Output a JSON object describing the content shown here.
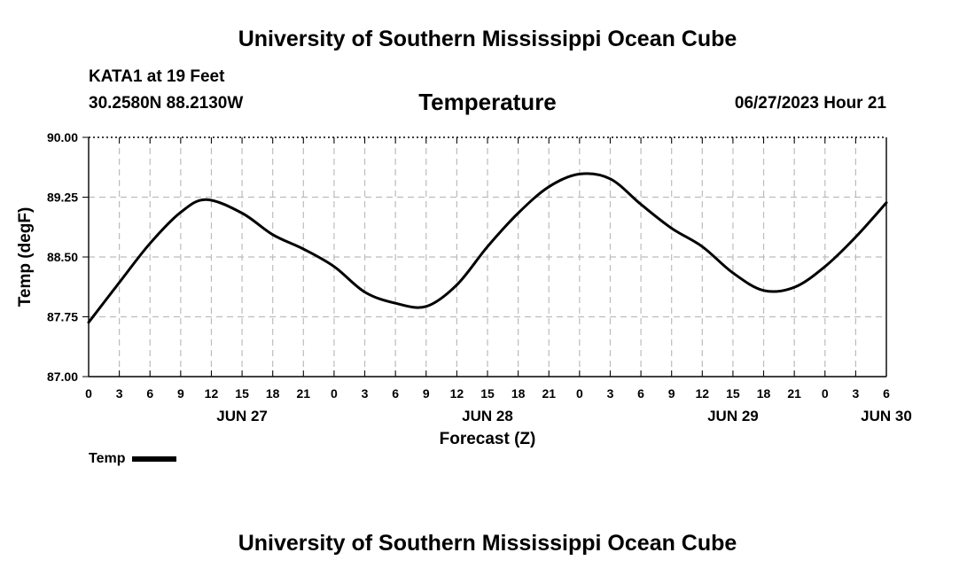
{
  "page": {
    "title_top": "University of Southern Mississippi Ocean Cube",
    "title_bottom": "University of Southern Mississippi Ocean Cube",
    "station": "KATA1 at 19 Feet",
    "coordinates": "30.2580N  88.2130W",
    "datetime": "06/27/2023 Hour 21"
  },
  "chart_data": {
    "type": "line",
    "title": "Temperature",
    "xlabel": "Forecast (Z)",
    "ylabel": "Temp (degF)",
    "ylim": [
      87.0,
      90.0
    ],
    "yticks": [
      "87.00",
      "87.75",
      "88.50",
      "89.25",
      "90.00"
    ],
    "xlim": [
      0,
      78
    ],
    "x_tick_step_hours": 3,
    "x_tick_labels": [
      "0",
      "3",
      "6",
      "9",
      "12",
      "15",
      "18",
      "21",
      "0",
      "3",
      "6",
      "9",
      "12",
      "15",
      "18",
      "21",
      "0",
      "3",
      "6",
      "9",
      "12",
      "15",
      "18",
      "21",
      "0",
      "3",
      "6"
    ],
    "date_labels": [
      {
        "hour": 15,
        "label": "JUN 27"
      },
      {
        "hour": 39,
        "label": "JUN 28"
      },
      {
        "hour": 63,
        "label": "JUN 29"
      },
      {
        "hour": 78,
        "label": "JUN 30"
      }
    ],
    "grid": true,
    "legend_position": "bottom-left",
    "line_color": "#000000",
    "series": [
      {
        "name": "Temp",
        "x": [
          0,
          3,
          6,
          9,
          11.5,
          15,
          18,
          21,
          24,
          27,
          30,
          33,
          36,
          39,
          42,
          45,
          48,
          51,
          54,
          57,
          60,
          63,
          66,
          69,
          72,
          75,
          78
        ],
        "values": [
          87.68,
          88.18,
          88.67,
          89.06,
          89.22,
          89.05,
          88.78,
          88.6,
          88.38,
          88.06,
          87.92,
          87.88,
          88.15,
          88.63,
          89.05,
          89.38,
          89.54,
          89.48,
          89.16,
          88.86,
          88.63,
          88.3,
          88.08,
          88.12,
          88.38,
          88.75,
          89.18
        ]
      }
    ],
    "legend": [
      "Temp"
    ]
  }
}
